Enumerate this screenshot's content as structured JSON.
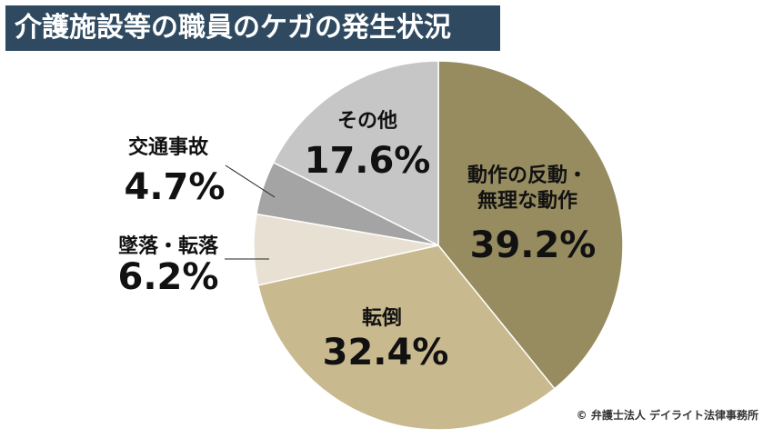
{
  "title": "介護施設等の職員のケガの発生状況",
  "credit": "© 弁護士法人 デイライト法律事務所",
  "chart_data": {
    "type": "pie",
    "start": "12 o'clock, clockwise",
    "slices": [
      {
        "label_lines": [
          "動作の反動・",
          "無理な動作"
        ],
        "value": 39.2,
        "value_label": "39.2%",
        "color": "#968c60"
      },
      {
        "label_lines": [
          "転倒"
        ],
        "value": 32.4,
        "value_label": "32.4%",
        "color": "#c9b98e"
      },
      {
        "label_lines": [
          "墜落・転落"
        ],
        "value": 6.2,
        "value_label": "6.2%",
        "color": "#e8e1d3"
      },
      {
        "label_lines": [
          "交通事故"
        ],
        "value": 4.7,
        "value_label": "4.7%",
        "color": "#a4a4a4"
      },
      {
        "label_lines": [
          "その他"
        ],
        "value": 17.6,
        "value_label": "17.6%",
        "color": "#c6c6c6"
      }
    ]
  }
}
